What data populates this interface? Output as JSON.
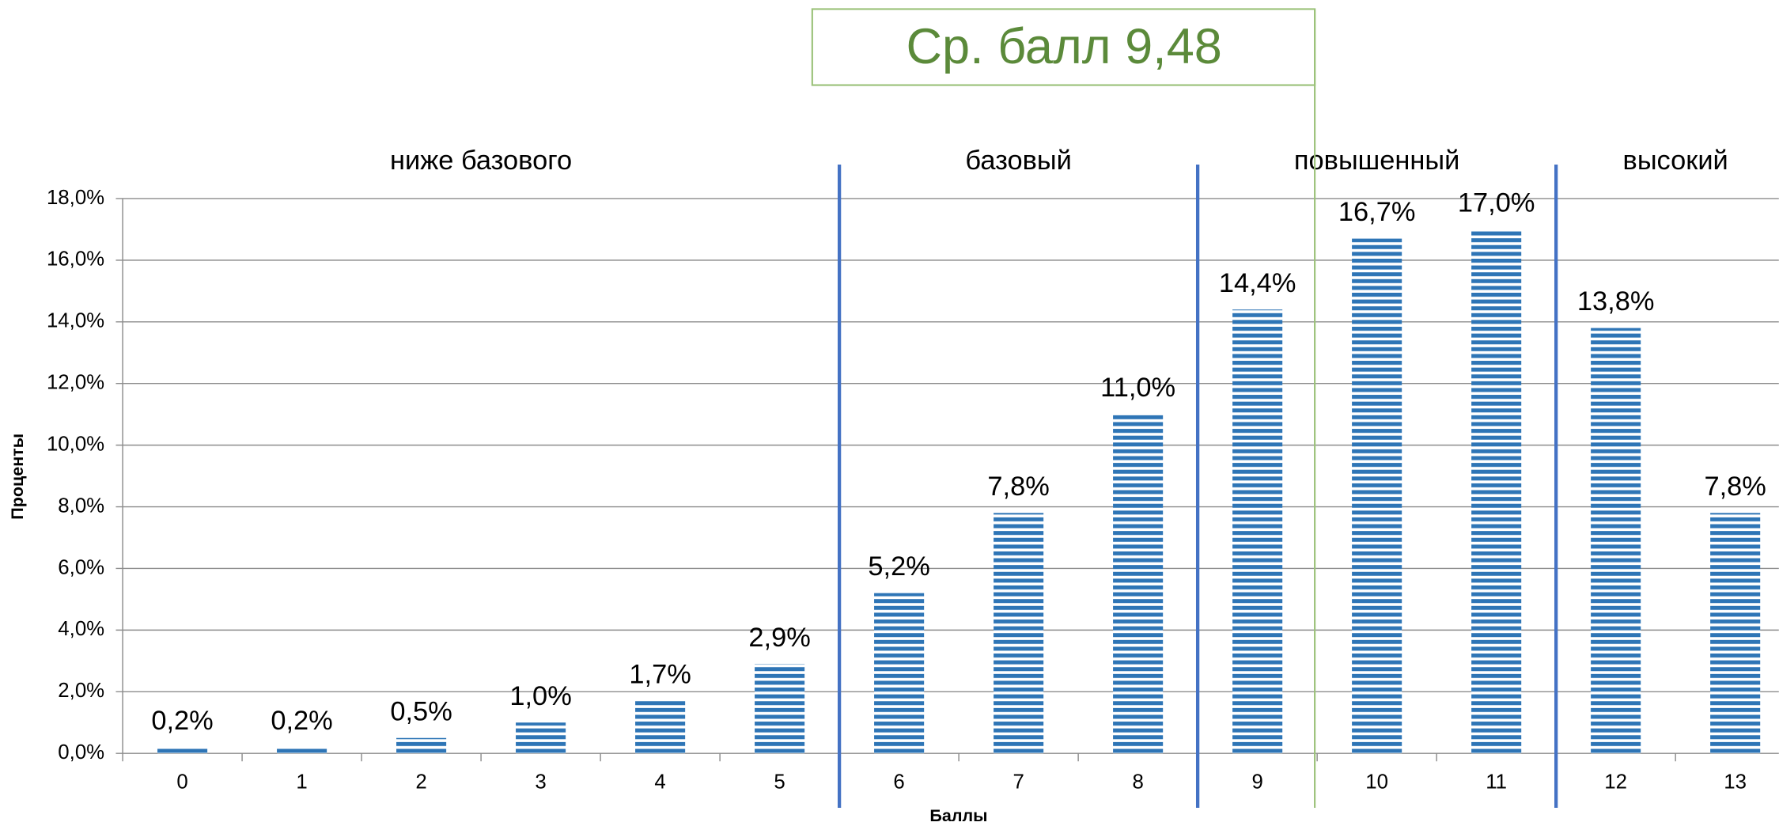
{
  "chart_data": {
    "type": "bar",
    "categories": [
      "0",
      "1",
      "2",
      "3",
      "4",
      "5",
      "6",
      "7",
      "8",
      "9",
      "10",
      "11",
      "12",
      "13"
    ],
    "values": [
      0.2,
      0.2,
      0.5,
      1.0,
      1.7,
      2.9,
      5.2,
      7.8,
      11.0,
      14.4,
      16.7,
      17.0,
      13.8,
      7.8
    ],
    "value_labels": [
      "0,2%",
      "0,2%",
      "0,5%",
      "1,0%",
      "1,7%",
      "2,9%",
      "5,2%",
      "7,8%",
      "11,0%",
      "14,4%",
      "16,7%",
      "17,0%",
      "13,8%",
      "7,8%"
    ],
    "color": "#2e75b6",
    "ylim": [
      0,
      18
    ],
    "yticks": [
      {
        "value": 0,
        "label": "0,0%"
      },
      {
        "value": 2,
        "label": "2,0%"
      },
      {
        "value": 4,
        "label": "4,0%"
      },
      {
        "value": 6,
        "label": "6,0%"
      },
      {
        "value": 8,
        "label": "8,0%"
      },
      {
        "value": 10,
        "label": "10,0%"
      },
      {
        "value": 12,
        "label": "12,0%"
      },
      {
        "value": 14,
        "label": "14,0%"
      },
      {
        "value": 16,
        "label": "16,0%"
      },
      {
        "value": 18,
        "label": "18,0%"
      }
    ],
    "grid": true,
    "xlabel": "Баллы",
    "ylabel": "Проценты",
    "regions": [
      {
        "label": "ниже базового",
        "scores": [
          0,
          5
        ]
      },
      {
        "label": "базовый",
        "scores": [
          6,
          8
        ]
      },
      {
        "label": "повышенный",
        "scores": [
          9,
          11
        ]
      },
      {
        "label": "высокий",
        "scores": [
          12,
          13
        ]
      }
    ],
    "mean_line": {
      "value": 9.48,
      "label": "Ср. балл 9,48",
      "color": "#5b8a3a"
    }
  }
}
